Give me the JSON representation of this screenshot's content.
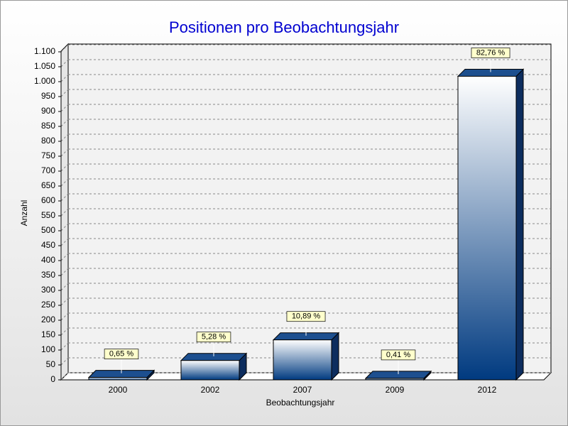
{
  "chart_data": {
    "type": "bar3d",
    "title": "Positionen pro Beobachtungsjahr",
    "x_label": "Beobachtungsjahr",
    "y_label": "Anzahl",
    "categories": [
      "2000",
      "2002",
      "2007",
      "2009",
      "2012"
    ],
    "values": [
      8,
      65,
      134,
      5,
      1018
    ],
    "percentages": [
      0.65,
      5.28,
      10.89,
      0.41,
      82.76
    ],
    "percentage_labels": [
      "0,65 %",
      "5,28 %",
      "10,89 %",
      "0,41 %",
      "82,76 %"
    ],
    "color": "#003a80",
    "ylim": [
      0,
      1100
    ],
    "yticks": [
      0,
      50,
      100,
      150,
      200,
      250,
      300,
      350,
      400,
      450,
      500,
      550,
      600,
      650,
      700,
      750,
      800,
      850,
      900,
      950,
      {
        "value": 1000,
        "label": "1.000"
      },
      {
        "value": 1050,
        "label": "1.050"
      },
      {
        "value": 1100,
        "label": "1.100"
      }
    ],
    "grid": true
  }
}
